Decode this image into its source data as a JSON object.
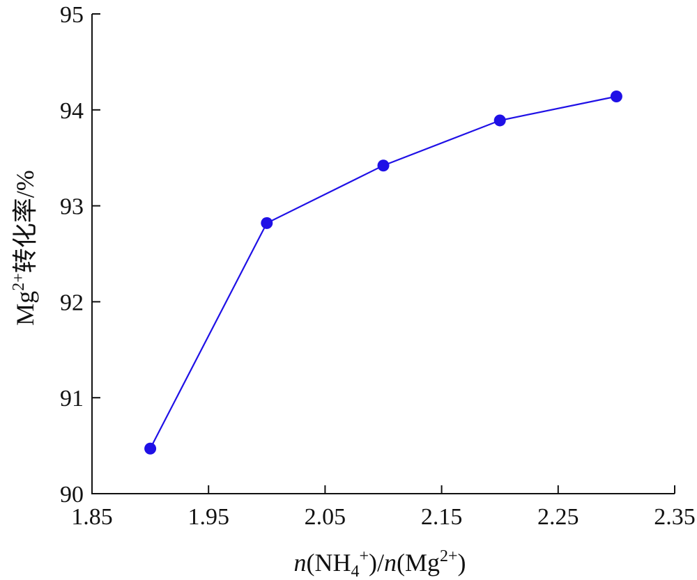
{
  "chart_data": {
    "type": "line",
    "title": "",
    "xlabel": "n(NH4+)/n(Mg2+)",
    "ylabel": "Mg2+转化率/%",
    "xlim": [
      1.85,
      2.35
    ],
    "ylim": [
      90,
      95
    ],
    "x_ticks": [
      "1.85",
      "1.95",
      "2.05",
      "2.15",
      "2.25",
      "2.35"
    ],
    "y_ticks": [
      "90",
      "91",
      "92",
      "93",
      "94",
      "95"
    ],
    "grid": false,
    "legend": "none",
    "series": [
      {
        "x": [
          1.9,
          2.0,
          2.1,
          2.2,
          2.3
        ],
        "y": [
          90.47,
          92.82,
          93.42,
          93.89,
          94.14
        ],
        "color": "#1f10e6",
        "marker": "circle"
      }
    ]
  }
}
